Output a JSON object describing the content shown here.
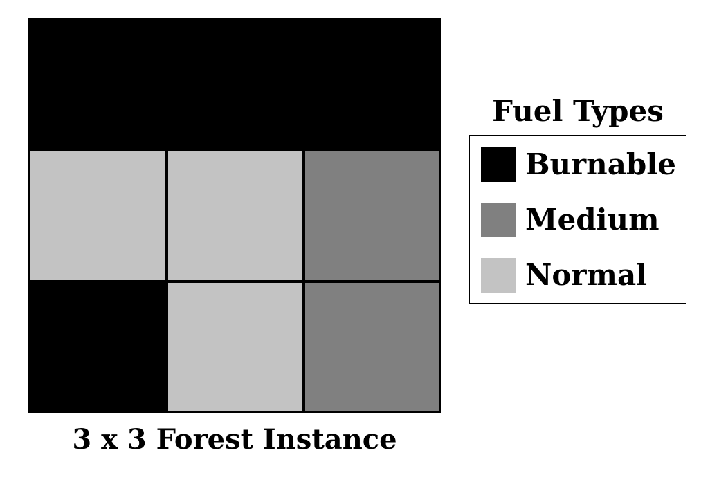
{
  "chart_data": {
    "type": "grid",
    "title": "3 x 3 Forest Instance",
    "rows": 3,
    "cols": 3,
    "cells": [
      [
        "Burnable",
        "Burnable",
        "Burnable"
      ],
      [
        "Normal",
        "Normal",
        "Medium"
      ],
      [
        "Burnable",
        "Normal",
        "Medium"
      ]
    ],
    "legend_title": "Fuel Types",
    "legend": [
      {
        "label": "Burnable",
        "color": "#000000"
      },
      {
        "label": "Medium",
        "color": "#808080"
      },
      {
        "label": "Normal",
        "color": "#c3c3c3"
      }
    ]
  }
}
